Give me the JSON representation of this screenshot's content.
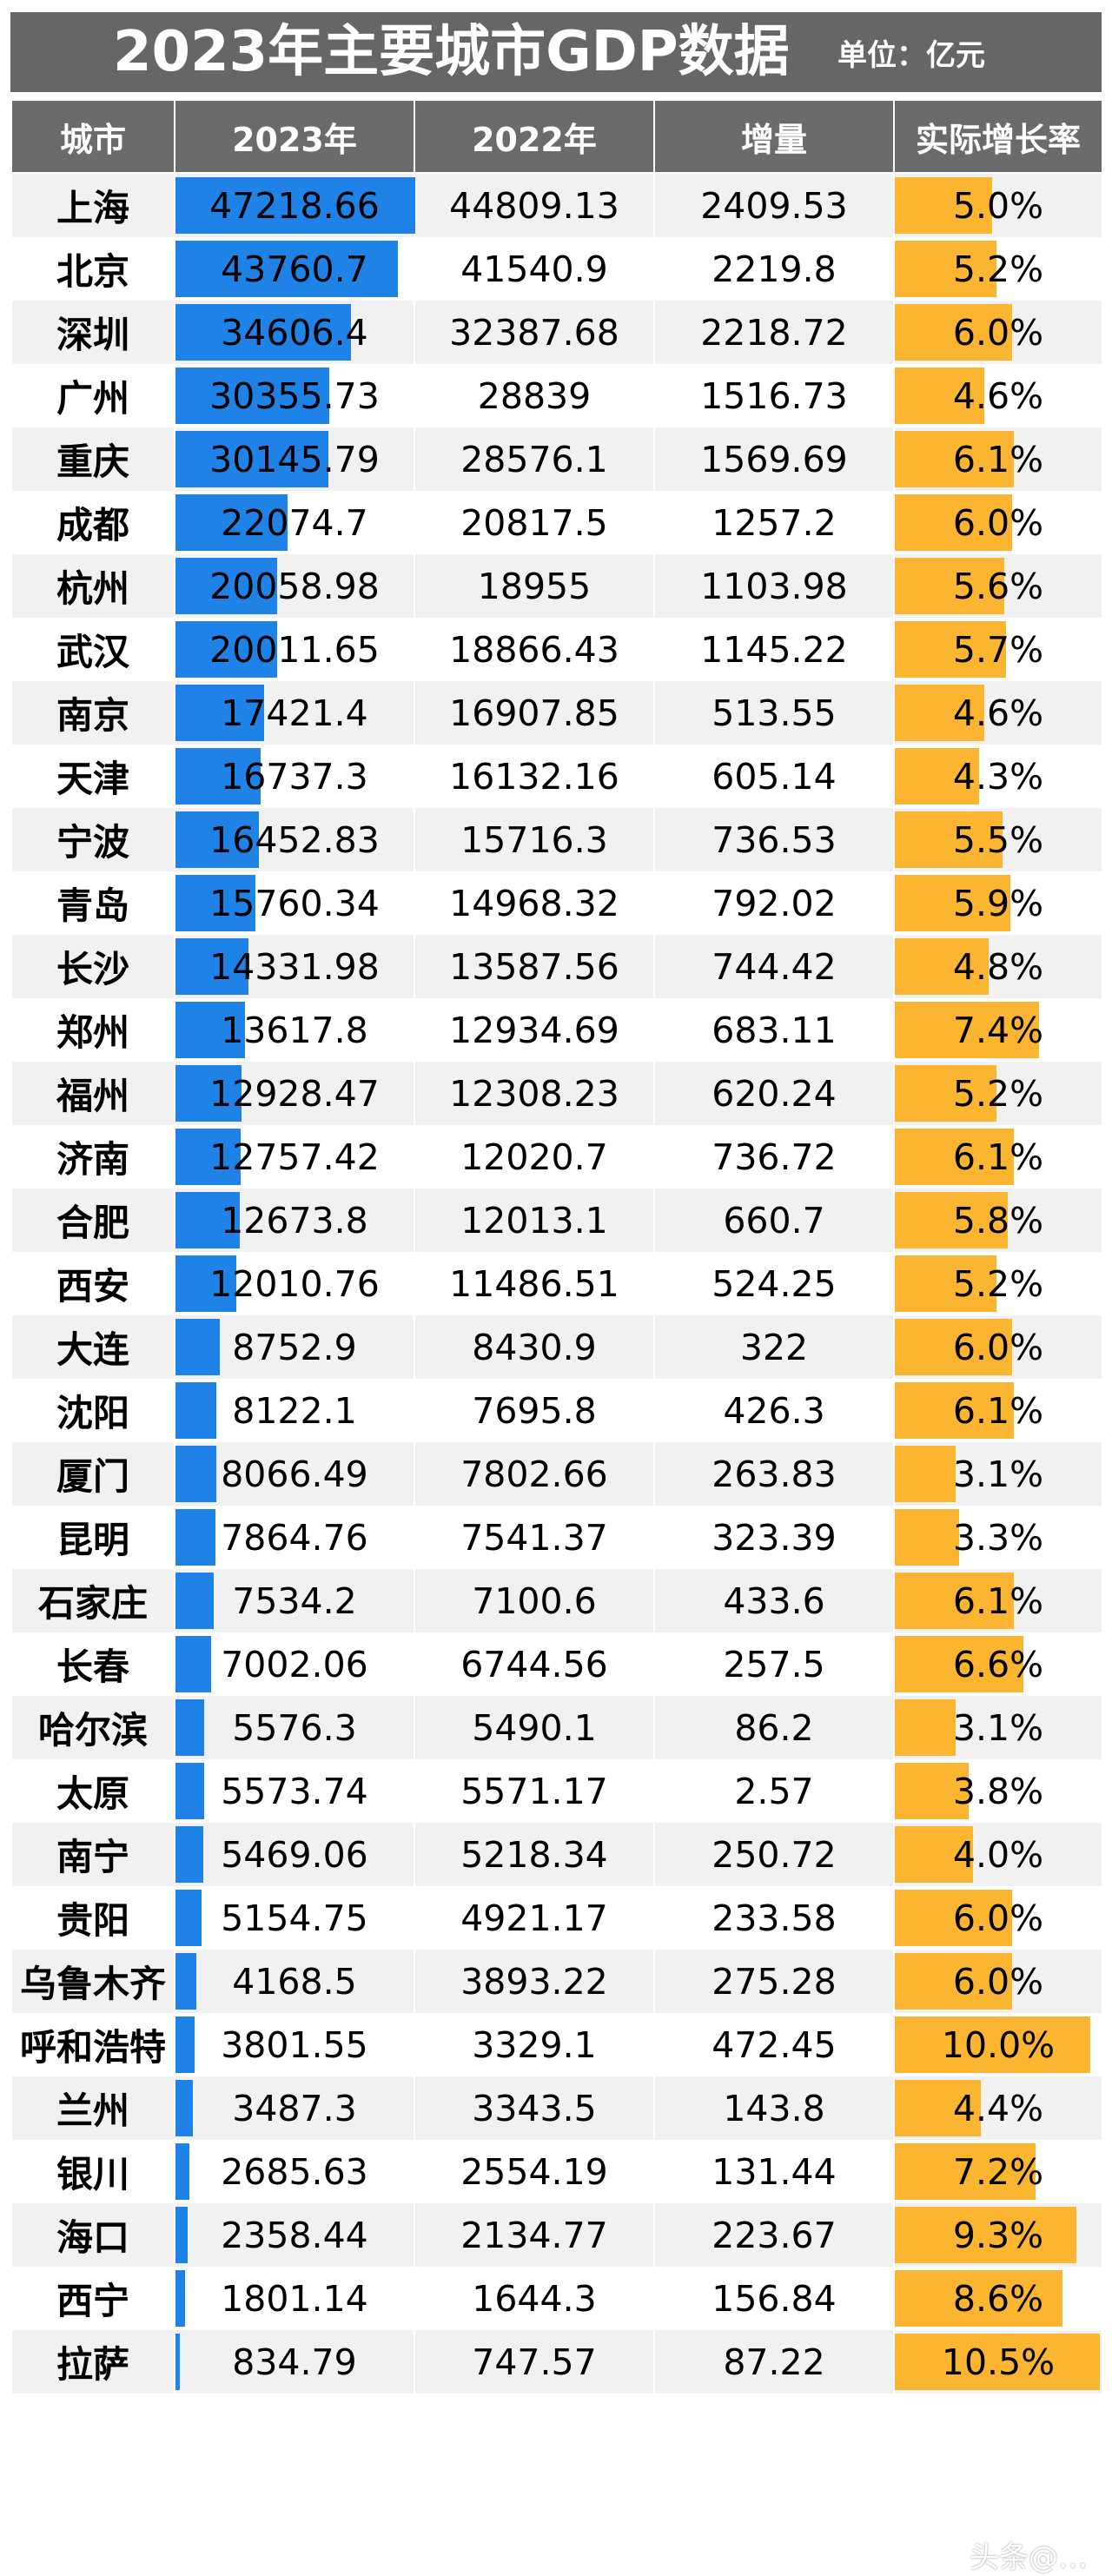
{
  "title": "2023年主要城市GDP数据",
  "unit": "单位：亿元",
  "headers": [
    "城市",
    "2023年",
    "2022年",
    "增量",
    "实际增长率"
  ],
  "watermark": "头条@…",
  "colors": {
    "header_bg": "#666666",
    "gdp_bar": "#1e82e6",
    "growth_bar": "#fbb530",
    "row_alt": "#f1f1f1"
  },
  "chart_data": {
    "type": "table",
    "columns": [
      "城市",
      "2023年",
      "2022年",
      "增量",
      "实际增长率"
    ],
    "rows": [
      {
        "city": "上海",
        "gdp2023": "47218.66",
        "gdp2022": "44809.13",
        "increase": "2409.53",
        "growth": "5.0%"
      },
      {
        "city": "北京",
        "gdp2023": "43760.7",
        "gdp2022": "41540.9",
        "increase": "2219.8",
        "growth": "5.2%"
      },
      {
        "city": "深圳",
        "gdp2023": "34606.4",
        "gdp2022": "32387.68",
        "increase": "2218.72",
        "growth": "6.0%"
      },
      {
        "city": "广州",
        "gdp2023": "30355.73",
        "gdp2022": "28839",
        "increase": "1516.73",
        "growth": "4.6%"
      },
      {
        "city": "重庆",
        "gdp2023": "30145.79",
        "gdp2022": "28576.1",
        "increase": "1569.69",
        "growth": "6.1%"
      },
      {
        "city": "成都",
        "gdp2023": "22074.7",
        "gdp2022": "20817.5",
        "increase": "1257.2",
        "growth": "6.0%"
      },
      {
        "city": "杭州",
        "gdp2023": "20058.98",
        "gdp2022": "18955",
        "increase": "1103.98",
        "growth": "5.6%"
      },
      {
        "city": "武汉",
        "gdp2023": "20011.65",
        "gdp2022": "18866.43",
        "increase": "1145.22",
        "growth": "5.7%"
      },
      {
        "city": "南京",
        "gdp2023": "17421.4",
        "gdp2022": "16907.85",
        "increase": "513.55",
        "growth": "4.6%"
      },
      {
        "city": "天津",
        "gdp2023": "16737.3",
        "gdp2022": "16132.16",
        "increase": "605.14",
        "growth": "4.3%"
      },
      {
        "city": "宁波",
        "gdp2023": "16452.83",
        "gdp2022": "15716.3",
        "increase": "736.53",
        "growth": "5.5%"
      },
      {
        "city": "青岛",
        "gdp2023": "15760.34",
        "gdp2022": "14968.32",
        "increase": "792.02",
        "growth": "5.9%"
      },
      {
        "city": "长沙",
        "gdp2023": "14331.98",
        "gdp2022": "13587.56",
        "increase": "744.42",
        "growth": "4.8%"
      },
      {
        "city": "郑州",
        "gdp2023": "13617.8",
        "gdp2022": "12934.69",
        "increase": "683.11",
        "growth": "7.4%"
      },
      {
        "city": "福州",
        "gdp2023": "12928.47",
        "gdp2022": "12308.23",
        "increase": "620.24",
        "growth": "5.2%"
      },
      {
        "city": "济南",
        "gdp2023": "12757.42",
        "gdp2022": "12020.7",
        "increase": "736.72",
        "growth": "6.1%"
      },
      {
        "city": "合肥",
        "gdp2023": "12673.8",
        "gdp2022": "12013.1",
        "increase": "660.7",
        "growth": "5.8%"
      },
      {
        "city": "西安",
        "gdp2023": "12010.76",
        "gdp2022": "11486.51",
        "increase": "524.25",
        "growth": "5.2%"
      },
      {
        "city": "大连",
        "gdp2023": "8752.9",
        "gdp2022": "8430.9",
        "increase": "322",
        "growth": "6.0%"
      },
      {
        "city": "沈阳",
        "gdp2023": "8122.1",
        "gdp2022": "7695.8",
        "increase": "426.3",
        "growth": "6.1%"
      },
      {
        "city": "厦门",
        "gdp2023": "8066.49",
        "gdp2022": "7802.66",
        "increase": "263.83",
        "growth": "3.1%"
      },
      {
        "city": "昆明",
        "gdp2023": "7864.76",
        "gdp2022": "7541.37",
        "increase": "323.39",
        "growth": "3.3%"
      },
      {
        "city": "石家庄",
        "gdp2023": "7534.2",
        "gdp2022": "7100.6",
        "increase": "433.6",
        "growth": "6.1%"
      },
      {
        "city": "长春",
        "gdp2023": "7002.06",
        "gdp2022": "6744.56",
        "increase": "257.5",
        "growth": "6.6%"
      },
      {
        "city": "哈尔滨",
        "gdp2023": "5576.3",
        "gdp2022": "5490.1",
        "increase": "86.2",
        "growth": "3.1%"
      },
      {
        "city": "太原",
        "gdp2023": "5573.74",
        "gdp2022": "5571.17",
        "increase": "2.57",
        "growth": "3.8%"
      },
      {
        "city": "南宁",
        "gdp2023": "5469.06",
        "gdp2022": "5218.34",
        "increase": "250.72",
        "growth": "4.0%"
      },
      {
        "city": "贵阳",
        "gdp2023": "5154.75",
        "gdp2022": "4921.17",
        "increase": "233.58",
        "growth": "6.0%"
      },
      {
        "city": "乌鲁木齐",
        "gdp2023": "4168.5",
        "gdp2022": "3893.22",
        "increase": "275.28",
        "growth": "6.0%"
      },
      {
        "city": "呼和浩特",
        "gdp2023": "3801.55",
        "gdp2022": "3329.1",
        "increase": "472.45",
        "growth": "10.0%"
      },
      {
        "city": "兰州",
        "gdp2023": "3487.3",
        "gdp2022": "3343.5",
        "increase": "143.8",
        "growth": "4.4%"
      },
      {
        "city": "银川",
        "gdp2023": "2685.63",
        "gdp2022": "2554.19",
        "increase": "131.44",
        "growth": "7.2%"
      },
      {
        "city": "海口",
        "gdp2023": "2358.44",
        "gdp2022": "2134.77",
        "increase": "223.67",
        "growth": "9.3%"
      },
      {
        "city": "西宁",
        "gdp2023": "1801.14",
        "gdp2022": "1644.3",
        "increase": "156.84",
        "growth": "8.6%"
      },
      {
        "city": "拉萨",
        "gdp2023": "834.79",
        "gdp2022": "747.57",
        "increase": "87.22",
        "growth": "10.5%"
      }
    ]
  }
}
